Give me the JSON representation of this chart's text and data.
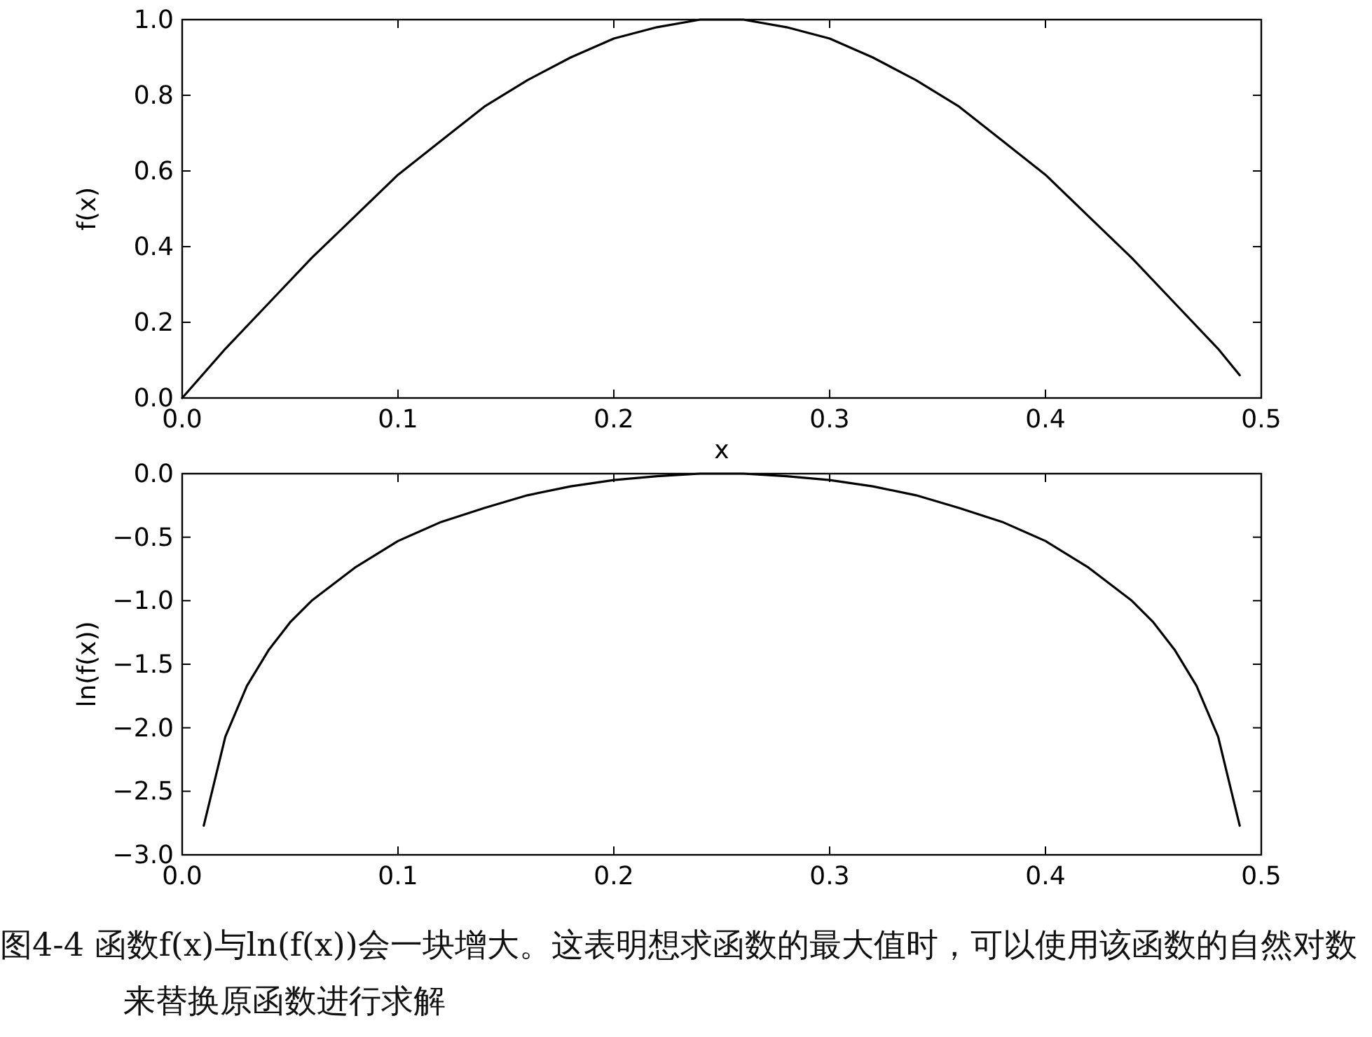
{
  "chart_data": [
    {
      "type": "line",
      "xlabel": "x",
      "ylabel": "f(x)",
      "color": "#000000",
      "x": [
        0,
        0.02,
        0.04,
        0.06,
        0.08,
        0.1,
        0.12,
        0.14,
        0.16,
        0.18,
        0.2,
        0.22,
        0.24,
        0.26,
        0.28,
        0.3,
        0.32,
        0.34,
        0.36,
        0.38,
        0.4,
        0.42,
        0.44,
        0.46,
        0.48,
        0.49
      ],
      "values": [
        0,
        0.13,
        0.25,
        0.37,
        0.48,
        0.59,
        0.68,
        0.77,
        0.84,
        0.9,
        0.95,
        0.98,
        1.0,
        1.0,
        0.98,
        0.95,
        0.9,
        0.84,
        0.77,
        0.68,
        0.59,
        0.48,
        0.37,
        0.25,
        0.13,
        0.06
      ],
      "xlim": [
        0,
        0.5
      ],
      "ylim": [
        0,
        1
      ],
      "xticks": [
        {
          "value": 0,
          "label": "0.0"
        },
        0.1,
        0.2,
        0.3,
        0.4,
        0.5
      ],
      "yticks": [
        {
          "value": 0,
          "label": "0.0"
        },
        0.2,
        0.4,
        0.6,
        0.8,
        {
          "value": 1,
          "label": "1.0"
        }
      ]
    },
    {
      "type": "line",
      "ylabel": "ln(f(x))",
      "color": "#000000",
      "x": [
        0.01,
        0.02,
        0.03,
        0.04,
        0.05,
        0.06,
        0.08,
        0.1,
        0.12,
        0.14,
        0.16,
        0.18,
        0.2,
        0.22,
        0.24,
        0.26,
        0.28,
        0.3,
        0.32,
        0.34,
        0.36,
        0.38,
        0.4,
        0.42,
        0.44,
        0.45,
        0.46,
        0.47,
        0.48,
        0.49
      ],
      "values": [
        -2.77,
        -2.07,
        -1.67,
        -1.39,
        -1.17,
        -1.0,
        -0.74,
        -0.53,
        -0.38,
        -0.27,
        -0.17,
        -0.1,
        -0.05,
        -0.02,
        0,
        0,
        -0.02,
        -0.05,
        -0.1,
        -0.17,
        -0.27,
        -0.38,
        -0.53,
        -0.74,
        -1.0,
        -1.17,
        -1.39,
        -1.67,
        -2.07,
        -2.77
      ],
      "xlim": [
        0,
        0.5
      ],
      "ylim": [
        -3,
        0
      ],
      "xticks": [
        {
          "value": 0,
          "label": "0.0"
        },
        0.1,
        0.2,
        0.3,
        0.4,
        0.5
      ],
      "yticks": [
        {
          "value": -3,
          "label": "−3.0"
        },
        {
          "value": -2.5,
          "label": "−2.5"
        },
        {
          "value": -2,
          "label": "−2.0"
        },
        {
          "value": -1.5,
          "label": "−1.5"
        },
        {
          "value": -1,
          "label": "−1.0"
        },
        {
          "value": -0.5,
          "label": "−0.5"
        },
        {
          "value": 0,
          "label": "0.0"
        }
      ],
      "annotations": [
        "图4-4 函数f(x)与ln(f(x))会一块增大。这表明想求函数的最大值时，可以使用该函数的自然对数来替换原函数进行求解"
      ]
    }
  ]
}
